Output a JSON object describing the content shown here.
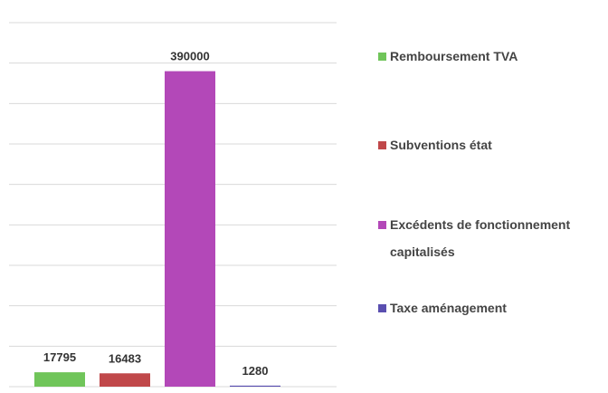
{
  "chart_data": {
    "type": "bar",
    "series": [
      {
        "name": "Remboursement TVA",
        "color": "#70c55a",
        "values": [
          17795
        ]
      },
      {
        "name": "Subventions état",
        "color": "#c0484a",
        "values": [
          16483
        ]
      },
      {
        "name": "Excédents de fonctionnement capitalisés",
        "color": "#b348b8",
        "values": [
          390000
        ]
      },
      {
        "name": "Taxe aménagement",
        "color": "#5a4fb0",
        "values": [
          1280
        ]
      }
    ],
    "ylim": [
      0,
      450000
    ],
    "yticks": [
      0,
      50000,
      100000,
      150000,
      200000,
      250000,
      300000,
      350000,
      400000,
      450000
    ],
    "grid": true,
    "legend": "right"
  }
}
